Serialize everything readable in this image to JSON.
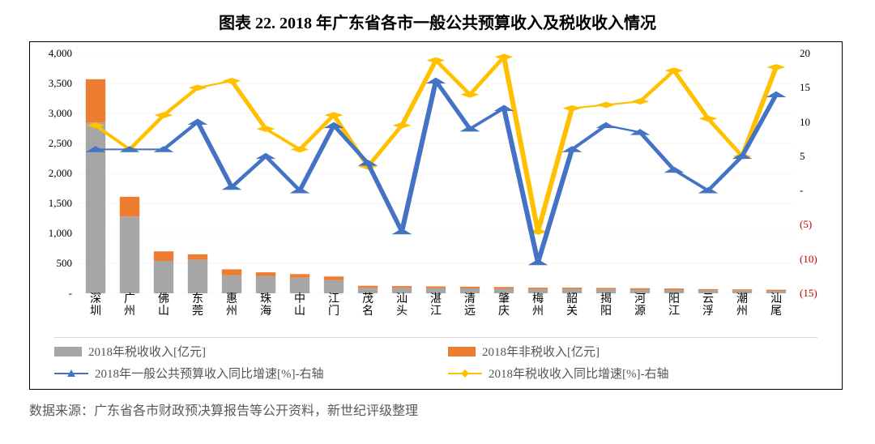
{
  "title": "图表 22. 2018 年广东省各市一般公共预算收入及税收收入情况",
  "source": "数据来源：广东省各市财政预决算报告等公开资料，新世纪评级整理",
  "categories": [
    "深圳",
    "广州",
    "佛山",
    "东莞",
    "惠州",
    "珠海",
    "中山",
    "江门",
    "茂名",
    "汕头",
    "湛江",
    "清远",
    "肇庆",
    "梅州",
    "韶关",
    "揭阳",
    "河源",
    "阳江",
    "云浮",
    "潮州",
    "汕尾"
  ],
  "left_axis": {
    "min": 0,
    "max": 4000,
    "step": 500,
    "ticks": [
      0,
      500,
      1000,
      1500,
      2000,
      2500,
      3000,
      3500,
      4000
    ],
    "labels": [
      "-",
      "500",
      "1,000",
      "1,500",
      "2,000",
      "2,500",
      "3,000",
      "3,500",
      "4,000"
    ],
    "unit": "亿元"
  },
  "right_axis": {
    "min": -15,
    "max": 20,
    "step": 5,
    "ticks": [
      -15,
      -10,
      -5,
      0,
      5,
      10,
      15,
      20
    ],
    "labels": [
      "(15)",
      "(10)",
      "(5)",
      "-",
      "5",
      "10",
      "15",
      "20"
    ],
    "neg": [
      true,
      true,
      true,
      false,
      false,
      false,
      false,
      false
    ],
    "unit": "%"
  },
  "bars": {
    "tax": {
      "label": "2018年税收收入[亿元]",
      "color": "#a6a6a6",
      "values": [
        2850,
        1280,
        540,
        560,
        300,
        290,
        260,
        220,
        90,
        90,
        85,
        80,
        75,
        70,
        70,
        65,
        60,
        55,
        50,
        45,
        40
      ]
    },
    "nontax": {
      "label": "2018年非税收入[亿元]",
      "color": "#ed7d31",
      "values": [
        720,
        330,
        160,
        90,
        100,
        60,
        60,
        60,
        35,
        30,
        30,
        30,
        30,
        25,
        25,
        25,
        25,
        25,
        20,
        20,
        20
      ]
    }
  },
  "lines": {
    "budget_growth": {
      "label": "2018年一般公共预算收入同比增速[%]-右轴",
      "color": "#4472c4",
      "marker": "triangle",
      "width": 2,
      "values": [
        6.0,
        6.0,
        6.0,
        10.0,
        0.5,
        5.0,
        0.0,
        9.5,
        4.0,
        -6.0,
        16.0,
        9.0,
        12.0,
        -10.5,
        6.0,
        9.5,
        8.5,
        3.0,
        0.0,
        5.0,
        14.0
      ]
    },
    "tax_growth": {
      "label": "2018年税收收入同比增速[%]-右轴",
      "color": "#ffc000",
      "marker": "diamond",
      "width": 2,
      "values": [
        9.5,
        6.0,
        11.0,
        15.0,
        16.0,
        9.0,
        6.0,
        11.0,
        3.5,
        9.5,
        19.0,
        14.0,
        19.5,
        -6.0,
        12.0,
        12.5,
        13.0,
        17.5,
        10.5,
        5.0,
        18.0
      ]
    }
  },
  "legend_order": [
    "tax",
    "nontax",
    "budget_growth",
    "tax_growth"
  ],
  "bar_width": 0.58,
  "chart_colors": {
    "grid": "#d9d9d9",
    "border": "#000000",
    "bg": "#ffffff",
    "right_neg": "#c00000",
    "text": "#000000",
    "legend_text": "#595959"
  }
}
